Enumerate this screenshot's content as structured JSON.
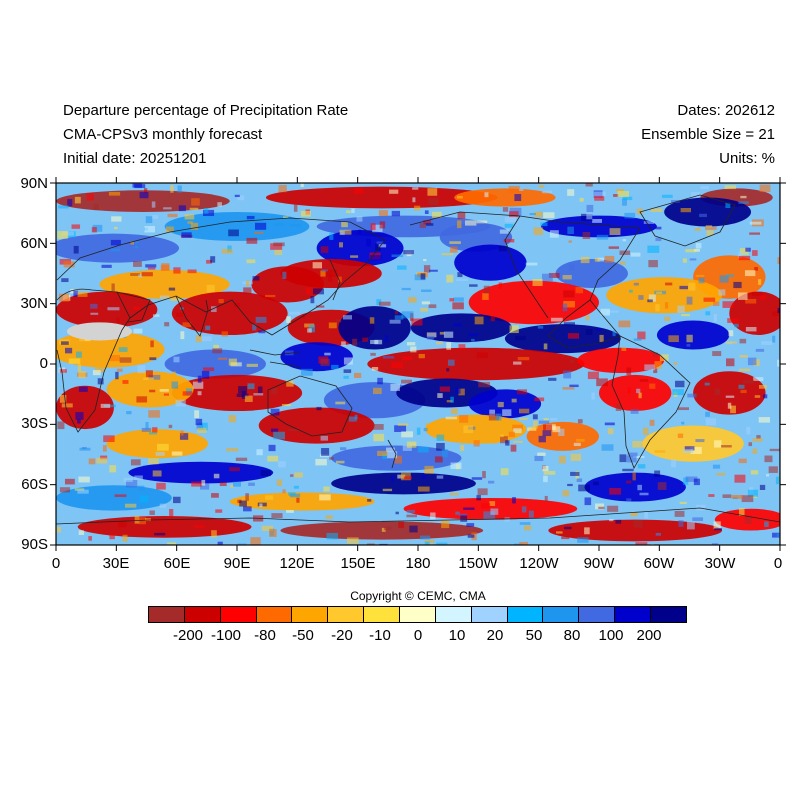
{
  "header": {
    "title": "Departure percentage of Precipitation Rate",
    "model": "CMA-CPSv3 monthly forecast",
    "initial_date": "Initial date: 20251201",
    "dates": "Dates: 202612",
    "ensemble": "Ensemble Size = 21",
    "units": "Units: %"
  },
  "axes": {
    "lat_labels": [
      "90N",
      "60N",
      "30N",
      "0",
      "30S",
      "60S",
      "90S"
    ],
    "lon_labels": [
      "0",
      "30E",
      "60E",
      "90E",
      "120E",
      "150E",
      "180",
      "150W",
      "120W",
      "90W",
      "60W",
      "30W",
      "0"
    ]
  },
  "copyright": "Copyright © CEMC, CMA",
  "colorbar": {
    "colors": [
      "#a52a2a",
      "#cd0000",
      "#ff0000",
      "#ff6a00",
      "#ffa500",
      "#ffc82d",
      "#ffe13c",
      "#ffffc8",
      "#d2f5ff",
      "#a0d2ff",
      "#00b4ff",
      "#1e96f0",
      "#4169e1",
      "#0000cd",
      "#00008b"
    ],
    "labels": [
      "-200",
      "-100",
      "-80",
      "-50",
      "-20",
      "-10",
      "0",
      "10",
      "20",
      "50",
      "80",
      "100",
      "200"
    ]
  }
}
